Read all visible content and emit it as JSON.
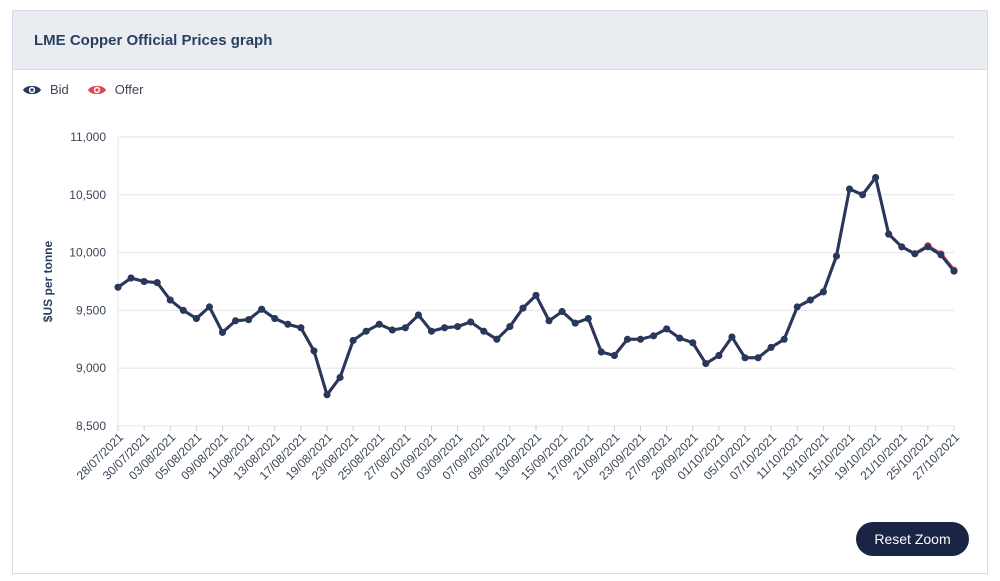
{
  "header": {
    "title": "LME Copper Official Prices graph"
  },
  "legend": [
    {
      "label": "Bid",
      "color": "#24395c",
      "icon": "eye-icon"
    },
    {
      "label": "Offer",
      "color": "#e2454f",
      "icon": "eye-icon"
    }
  ],
  "reset_button": {
    "label": "Reset Zoom"
  },
  "chart_data": {
    "type": "line",
    "title": "LME Copper Official Prices graph",
    "ylabel": "$US per tonne",
    "xlabel": "",
    "ylim": [
      8500,
      11000
    ],
    "yticks": [
      "8,500",
      "9,000",
      "9,500",
      "10,000",
      "10,500",
      "11,000"
    ],
    "grid": true,
    "legend_position": "top-left",
    "x": [
      "28/07/2021",
      "29/07/2021",
      "30/07/2021",
      "02/08/2021",
      "03/08/2021",
      "04/08/2021",
      "05/08/2021",
      "06/08/2021",
      "09/08/2021",
      "10/08/2021",
      "11/08/2021",
      "12/08/2021",
      "13/08/2021",
      "16/08/2021",
      "17/08/2021",
      "18/08/2021",
      "19/08/2021",
      "20/08/2021",
      "23/08/2021",
      "24/08/2021",
      "25/08/2021",
      "26/08/2021",
      "27/08/2021",
      "31/08/2021",
      "01/09/2021",
      "02/09/2021",
      "03/09/2021",
      "06/09/2021",
      "07/09/2021",
      "08/09/2021",
      "09/09/2021",
      "10/09/2021",
      "13/09/2021",
      "14/09/2021",
      "15/09/2021",
      "16/09/2021",
      "17/09/2021",
      "20/09/2021",
      "21/09/2021",
      "22/09/2021",
      "23/09/2021",
      "24/09/2021",
      "27/09/2021",
      "28/09/2021",
      "29/09/2021",
      "30/09/2021",
      "01/10/2021",
      "04/10/2021",
      "05/10/2021",
      "06/10/2021",
      "07/10/2021",
      "08/10/2021",
      "11/10/2021",
      "12/10/2021",
      "13/10/2021",
      "14/10/2021",
      "15/10/2021",
      "18/10/2021",
      "19/10/2021",
      "20/10/2021",
      "21/10/2021",
      "22/10/2021",
      "25/10/2021",
      "26/10/2021",
      "27/10/2021"
    ],
    "xtick_labels": [
      "28/07/2021",
      "30/07/2021",
      "03/08/2021",
      "05/08/2021",
      "09/08/2021",
      "11/08/2021",
      "13/08/2021",
      "17/08/2021",
      "19/08/2021",
      "23/08/2021",
      "25/08/2021",
      "27/08/2021",
      "01/09/2021",
      "03/09/2021",
      "07/09/2021",
      "09/09/2021",
      "13/09/2021",
      "15/09/2021",
      "17/09/2021",
      "21/09/2021",
      "23/09/2021",
      "27/09/2021",
      "29/09/2021",
      "01/10/2021",
      "05/10/2021",
      "07/10/2021",
      "11/10/2021",
      "13/10/2021",
      "15/10/2021",
      "19/10/2021",
      "21/10/2021",
      "25/10/2021",
      "27/10/2021"
    ],
    "series": [
      {
        "name": "Bid",
        "color": "#24395c",
        "values": [
          9700,
          9780,
          9750,
          9740,
          9590,
          9500,
          9430,
          9530,
          9310,
          9410,
          9420,
          9510,
          9430,
          9380,
          9350,
          9150,
          8770,
          8920,
          9240,
          9320,
          9380,
          9330,
          9350,
          9460,
          9320,
          9350,
          9360,
          9400,
          9320,
          9250,
          9360,
          9520,
          9630,
          9410,
          9490,
          9390,
          9430,
          9140,
          9110,
          9250,
          9250,
          9280,
          9340,
          9260,
          9220,
          9040,
          9110,
          9270,
          9090,
          9090,
          9180,
          9250,
          9530,
          9590,
          9660,
          9970,
          10550,
          10500,
          10650,
          10160,
          10050,
          9990,
          10050,
          9980,
          9840
        ]
      },
      {
        "name": "Offer",
        "color": "#e2454f",
        "values": [
          9700,
          9780,
          9750,
          9740,
          9590,
          9500,
          9430,
          9530,
          9310,
          9410,
          9420,
          9510,
          9430,
          9380,
          9350,
          9150,
          8770,
          8920,
          9240,
          9320,
          9380,
          9330,
          9350,
          9460,
          9320,
          9350,
          9360,
          9400,
          9320,
          9250,
          9360,
          9520,
          9630,
          9410,
          9490,
          9390,
          9430,
          9140,
          9110,
          9250,
          9250,
          9280,
          9340,
          9260,
          9220,
          9040,
          9110,
          9270,
          9090,
          9090,
          9180,
          9250,
          9530,
          9590,
          9660,
          9970,
          10550,
          10500,
          10650,
          10160,
          10050,
          9990,
          10060,
          9990,
          9850
        ]
      }
    ]
  }
}
